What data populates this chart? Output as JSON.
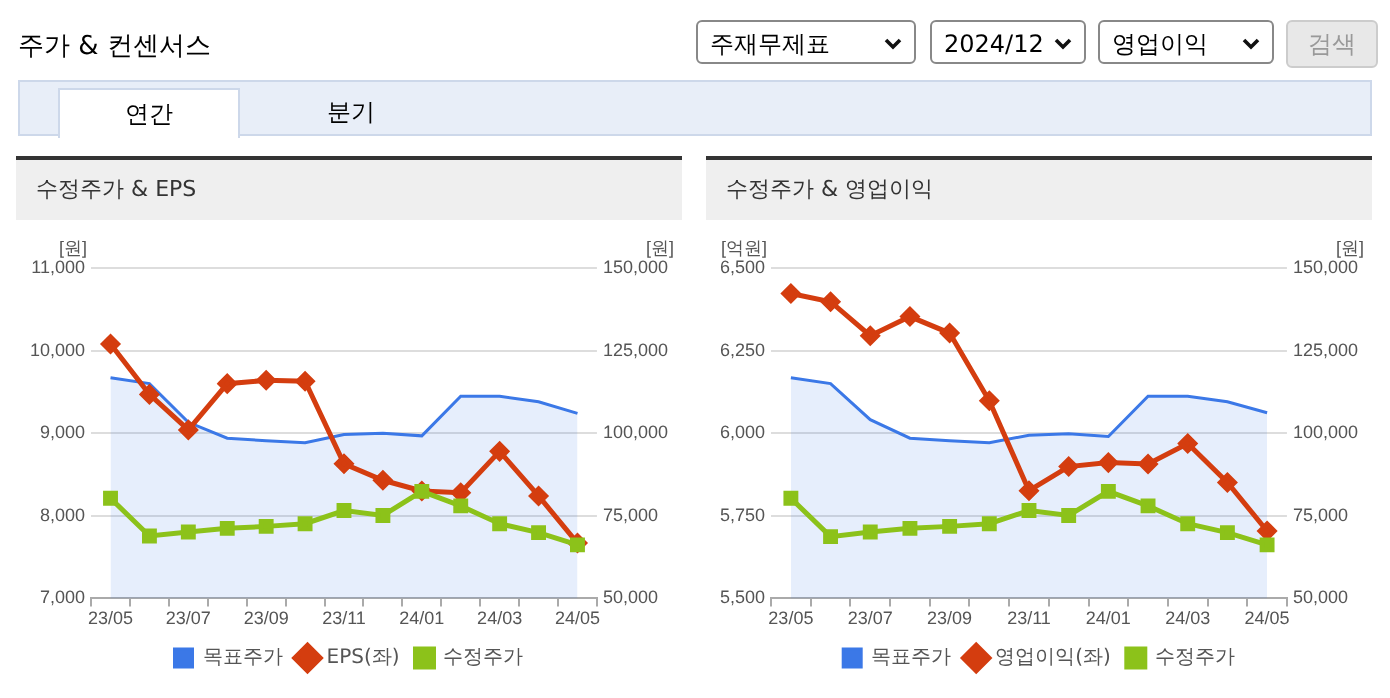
{
  "chart_data": [
    {
      "type": "other",
      "title": "주가 & 컨센서스",
      "annotations": [
        "주재무제표",
        "2024/12",
        "영업이익",
        "검색",
        "연간",
        "분기"
      ]
    },
    {
      "type": "line",
      "title": "수정주가 & EPS",
      "ylabel": "[원]",
      "y2label": "[원]",
      "categories": [
        "23/05",
        null,
        "23/07",
        null,
        "23/09",
        null,
        "23/11",
        null,
        "24/01",
        null,
        "24/03",
        null,
        "24/05"
      ],
      "series": [
        {
          "name": "목표주가",
          "type": "area",
          "axis": "y2",
          "color": "#3b78e7",
          "values": [
            116800,
            115000,
            103300,
            98500,
            97700,
            97100,
            99600,
            100000,
            99200,
            111200,
            111200,
            109500,
            106000
          ]
        },
        {
          "name": "EPS(좌)",
          "type": "line",
          "marker": "diamond",
          "color": "#d43d0f",
          "values": [
            10080,
            9470,
            9040,
            9600,
            9640,
            9630,
            8630,
            8430,
            8300,
            8280,
            8780,
            8240,
            7670
          ]
        },
        {
          "name": "수정주가",
          "type": "line",
          "axis": "y2",
          "marker": "square",
          "color": "#8cc21a",
          "values": [
            80300,
            68900,
            70100,
            71200,
            71800,
            72600,
            76600,
            75100,
            82400,
            78000,
            72600,
            69900,
            66200
          ]
        }
      ],
      "ylim": [
        7000,
        11000
      ],
      "yticks": [
        {
          "value": 7000,
          "label": "7,000"
        },
        {
          "value": 8000,
          "label": "8,000"
        },
        {
          "value": 9000,
          "label": "9,000"
        },
        {
          "value": 10000,
          "label": "10,000"
        },
        {
          "value": 11000,
          "label": "11,000"
        }
      ],
      "y2lim": [
        50000,
        150000
      ],
      "y2ticks": [
        {
          "value": 50000,
          "label": "50,000"
        },
        {
          "value": 75000,
          "label": "75,000"
        },
        {
          "value": 100000,
          "label": "100,000"
        },
        {
          "value": 125000,
          "label": "125,000"
        },
        {
          "value": 150000,
          "label": "150,000"
        }
      ],
      "grid": "y",
      "legend": "bottom"
    },
    {
      "type": "line",
      "title": "수정주가 & 영업이익",
      "ylabel": "[억원]",
      "y2label": "[원]",
      "categories": [
        "23/05",
        null,
        "23/07",
        null,
        "23/09",
        null,
        "23/11",
        null,
        "24/01",
        null,
        "24/03",
        null,
        "24/05"
      ],
      "series": [
        {
          "name": "목표주가",
          "type": "area",
          "axis": "y2",
          "color": "#3b78e7",
          "values": [
            116800,
            115000,
            104100,
            98500,
            97700,
            97100,
            99400,
            99800,
            99000,
            111200,
            111200,
            109500,
            106200
          ]
        },
        {
          "name": "영업이익(좌)",
          "type": "line",
          "marker": "diamond",
          "color": "#d43d0f",
          "values": [
            6423,
            6398,
            6295,
            6353,
            6303,
            6098,
            5826,
            5899,
            5911,
            5907,
            5969,
            5851,
            5704
          ]
        },
        {
          "name": "수정주가",
          "type": "line",
          "axis": "y2",
          "marker": "square",
          "color": "#8cc21a",
          "values": [
            80300,
            68700,
            70100,
            71200,
            71800,
            72600,
            76600,
            75100,
            82400,
            78000,
            72600,
            69900,
            66200
          ]
        }
      ],
      "ylim": [
        5500,
        6500
      ],
      "yticks": [
        {
          "value": 5500,
          "label": "5,500"
        },
        {
          "value": 5750,
          "label": "5,750"
        },
        {
          "value": 6000,
          "label": "6,000"
        },
        {
          "value": 6250,
          "label": "6,250"
        },
        {
          "value": 6500,
          "label": "6,500"
        }
      ],
      "y2lim": [
        50000,
        150000
      ],
      "y2ticks": [
        {
          "value": 50000,
          "label": "50,000"
        },
        {
          "value": 75000,
          "label": "75,000"
        },
        {
          "value": 100000,
          "label": "100,000"
        },
        {
          "value": 125000,
          "label": "125,000"
        },
        {
          "value": 150000,
          "label": "150,000"
        }
      ],
      "grid": "y",
      "legend": "bottom"
    }
  ]
}
